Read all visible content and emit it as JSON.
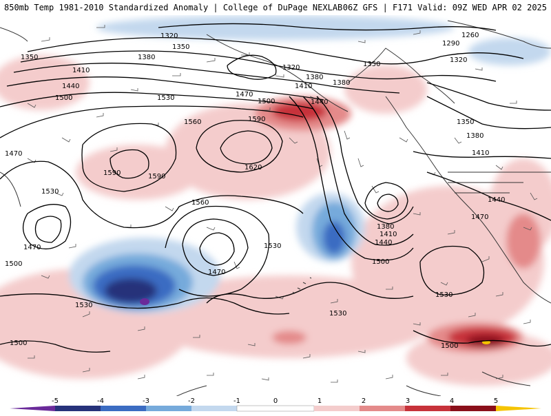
{
  "header": {
    "title_left": "850mb Temp 1981-2010 Standardized Anomaly | College of DuPage NEXLAB",
    "title_right": "06Z GFS | F171 Valid: 09Z WED APR 02 2025"
  },
  "colors": {
    "anom_neg5": "#6a2a9a",
    "anom_neg4": "#26327a",
    "anom_neg3": "#3b6cc2",
    "anom_neg2": "#76aadb",
    "anom_neg1": "#c3d8ee",
    "anom_pos1": "#f4cccc",
    "anom_pos2": "#e48a8a",
    "anom_pos3": "#c7323a",
    "anom_pos4": "#8a0f1a",
    "anom_pos5": "#f5c400",
    "contour": "#000000",
    "coastline": "#333333",
    "wind_barb": "#555555"
  },
  "contour_labels": [
    {
      "text": "1320"
    },
    {
      "text": "1350"
    },
    {
      "text": "1380"
    },
    {
      "text": "1350"
    },
    {
      "text": "1410"
    },
    {
      "text": "1440"
    },
    {
      "text": "1500"
    },
    {
      "text": "1530"
    },
    {
      "text": "1320"
    },
    {
      "text": "1380"
    },
    {
      "text": "1410"
    },
    {
      "text": "1470"
    },
    {
      "text": "1500"
    },
    {
      "text": "1440"
    },
    {
      "text": "1380"
    },
    {
      "text": "1350"
    },
    {
      "text": "1260"
    },
    {
      "text": "1290"
    },
    {
      "text": "1320"
    },
    {
      "text": "1470"
    },
    {
      "text": "1560"
    },
    {
      "text": "1590"
    },
    {
      "text": "1620"
    },
    {
      "text": "1590"
    },
    {
      "text": "1590"
    },
    {
      "text": "1530"
    },
    {
      "text": "1470"
    },
    {
      "text": "1500"
    },
    {
      "text": "1560"
    },
    {
      "text": "1470"
    },
    {
      "text": "1530"
    },
    {
      "text": "1530"
    },
    {
      "text": "1380"
    },
    {
      "text": "1410"
    },
    {
      "text": "1440"
    },
    {
      "text": "1500"
    },
    {
      "text": "1350"
    },
    {
      "text": "1380"
    },
    {
      "text": "1410"
    },
    {
      "text": "1440"
    },
    {
      "text": "1470"
    },
    {
      "text": "1530"
    },
    {
      "text": "1530"
    },
    {
      "text": "1500"
    },
    {
      "text": "1500"
    }
  ],
  "colorbar": {
    "tick_labels": [
      "-5",
      "-4",
      "-3",
      "-2",
      "-1",
      "0",
      "1",
      "2",
      "3",
      "4",
      "5"
    ]
  }
}
